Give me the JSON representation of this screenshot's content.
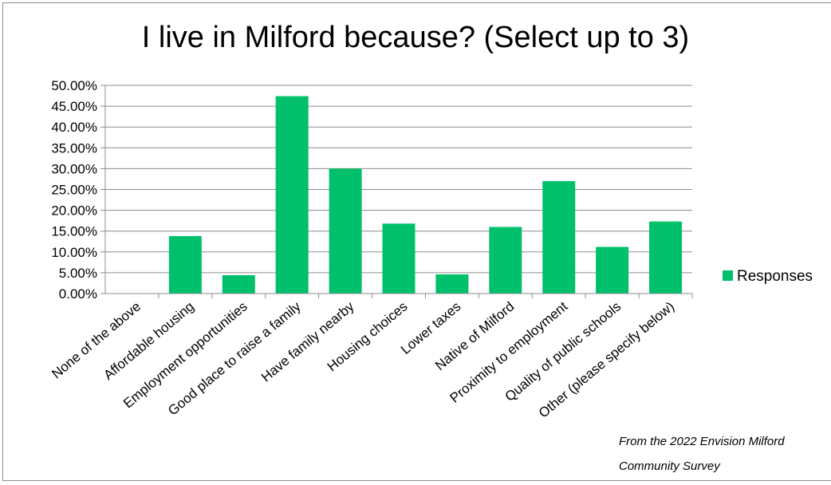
{
  "chart_data": {
    "type": "bar",
    "title": "I live in Milford because? (Select up to 3)",
    "categories": [
      "None of the above",
      "Affordable housing",
      "Employment opportunities",
      "Good place to raise a family",
      "Have family nearby",
      "Housing choices",
      "Lower taxes",
      "Native of Milford",
      "Proximity to employment",
      "Quality of public schools",
      "Other (please specify below)"
    ],
    "series": [
      {
        "name": "Responses",
        "color": "#00c06b",
        "values": [
          0.0,
          13.8,
          4.4,
          47.4,
          30.0,
          16.8,
          4.6,
          16.0,
          27.0,
          11.2,
          17.3
        ]
      }
    ],
    "yticks": [
      "0.00%",
      "5.00%",
      "10.00%",
      "15.00%",
      "20.00%",
      "25.00%",
      "30.00%",
      "35.00%",
      "40.00%",
      "45.00%",
      "50.00%"
    ],
    "ylim": [
      0,
      50
    ],
    "grid": true,
    "legend": "right"
  },
  "source_note": {
    "line1": "From the 2022 Envision Milford",
    "line2": "Community Survey"
  }
}
